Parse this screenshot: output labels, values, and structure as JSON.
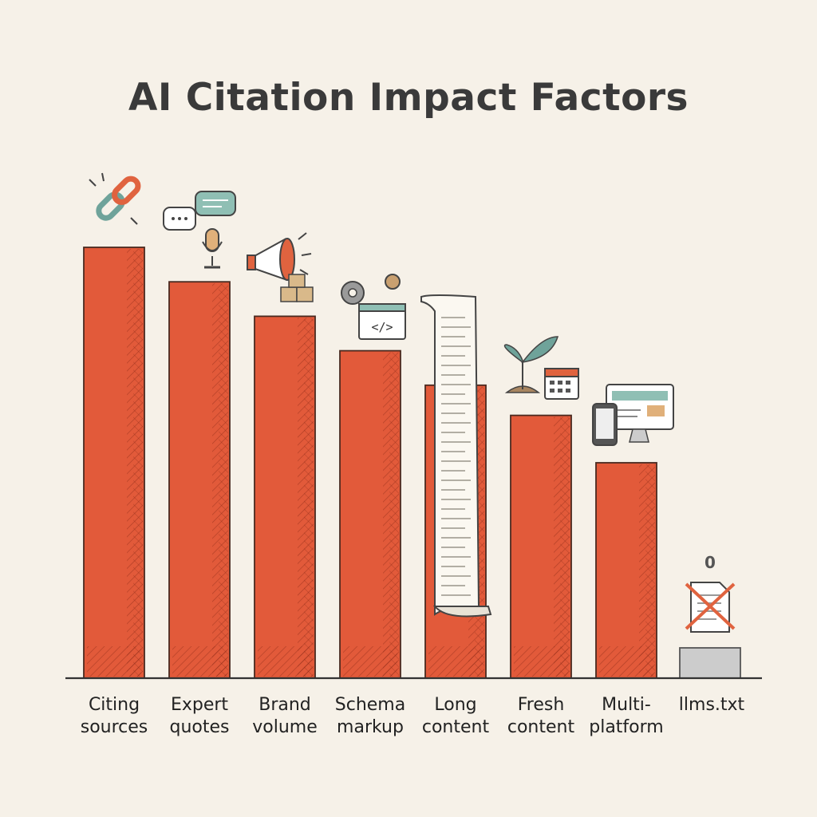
{
  "chart_data": {
    "type": "bar",
    "title": "AI Citation Impact Factors",
    "xlabel": "",
    "ylabel": "",
    "categories": [
      [
        "Citing",
        "sources"
      ],
      [
        "Expert",
        "quotes"
      ],
      [
        "Brand",
        "volume"
      ],
      [
        "Schema",
        "markup"
      ],
      [
        "Long",
        "content"
      ],
      [
        "Fresh",
        "content"
      ],
      [
        "Multi-",
        "platform"
      ],
      [
        "llms.txt"
      ]
    ],
    "values": [
      100,
      92,
      84,
      76,
      68,
      61,
      50,
      0
    ],
    "data_labels": [
      "",
      "",
      "",
      "",
      "",
      "",
      "",
      "0"
    ],
    "icons": [
      "link-icon",
      "speech-microphone-icon",
      "megaphone-icon",
      "gear-code-icon",
      "scroll-icon",
      "sprout-calendar-icon",
      "devices-icon",
      "crossed-document-icon"
    ],
    "ylim": [
      0,
      100
    ],
    "grid": false,
    "legend": "none",
    "colors": {
      "bar": "#e25a3a",
      "bar_dark": "#b13a22",
      "zero_bar": "#cccccc",
      "axis": "#333333",
      "background": "#f6f1e8"
    }
  }
}
